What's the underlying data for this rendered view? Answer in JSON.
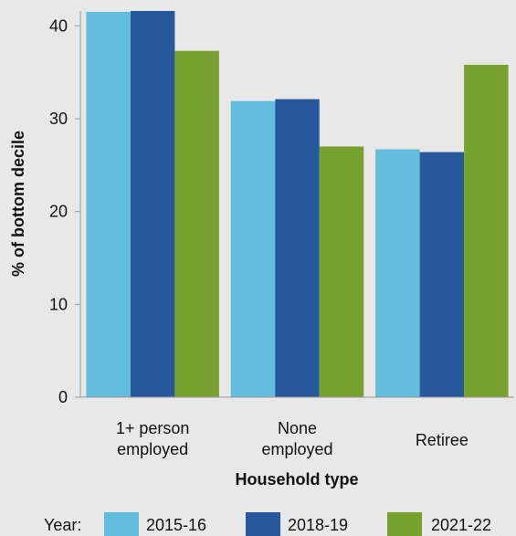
{
  "chart_data": {
    "type": "bar",
    "categories": [
      [
        "1+ person",
        "employed"
      ],
      [
        "None",
        "employed"
      ],
      [
        "Retiree"
      ]
    ],
    "series": [
      {
        "name": "2015-16",
        "color": "#62bcdb",
        "values": [
          41.5,
          31.9,
          26.7
        ]
      },
      {
        "name": "2018-19",
        "color": "#27589c",
        "values": [
          41.6,
          32.1,
          26.4
        ]
      },
      {
        "name": "2021-22",
        "color": "#78a22f",
        "values": [
          37.3,
          27.0,
          35.8
        ]
      }
    ],
    "xlabel": "Household type",
    "ylabel": "% of bottom decile",
    "ylim": [
      0,
      41.6
    ],
    "yticks": [
      0,
      10,
      20,
      30,
      40
    ],
    "grid": false,
    "legend_title": "Year:",
    "legend_position": "bottom"
  }
}
